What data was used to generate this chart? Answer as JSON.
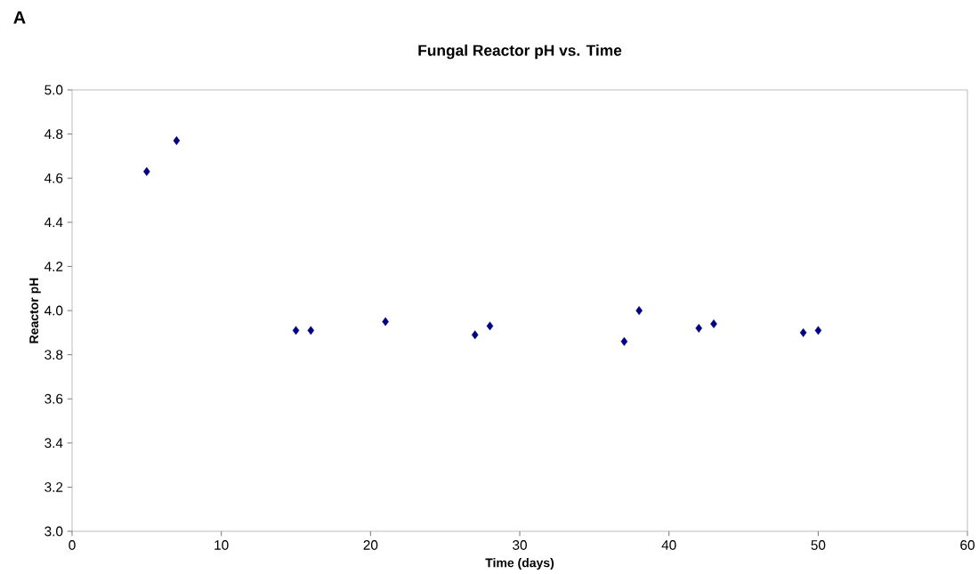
{
  "chart_data": {
    "type": "scatter",
    "title": "Fungal Reactor pH vs. Time",
    "xlabel": "Time (days)",
    "ylabel": "Reactor pH",
    "annotations": [
      "A"
    ],
    "x": [
      5,
      7,
      15,
      16,
      21,
      27,
      28,
      37,
      38,
      42,
      43,
      49,
      50
    ],
    "series": [
      {
        "color": "#000080",
        "values": [
          4.63,
          4.77,
          3.91,
          3.91,
          3.95,
          3.89,
          3.93,
          3.86,
          4.0,
          3.92,
          3.94,
          3.9,
          3.91
        ]
      }
    ],
    "xlim": [
      0,
      60
    ],
    "ylim": [
      3.0,
      5.0
    ],
    "xticks": [
      0,
      10,
      20,
      30,
      40,
      50,
      60
    ],
    "yticks": [
      {
        "value": 3.0,
        "label": "3.0"
      },
      {
        "value": 3.2,
        "label": "3.2"
      },
      {
        "value": 3.4,
        "label": "3.4"
      },
      {
        "value": 3.6,
        "label": "3.6"
      },
      {
        "value": 3.8,
        "label": "3.8"
      },
      {
        "value": 4.0,
        "label": "4.0"
      },
      {
        "value": 4.2,
        "label": "4.2"
      },
      {
        "value": 4.4,
        "label": "4.4"
      },
      {
        "value": 4.6,
        "label": "4.6"
      },
      {
        "value": 4.8,
        "label": "4.8"
      },
      {
        "value": 5.0,
        "label": "5.0"
      }
    ],
    "marker": "diamond",
    "grid": false
  }
}
